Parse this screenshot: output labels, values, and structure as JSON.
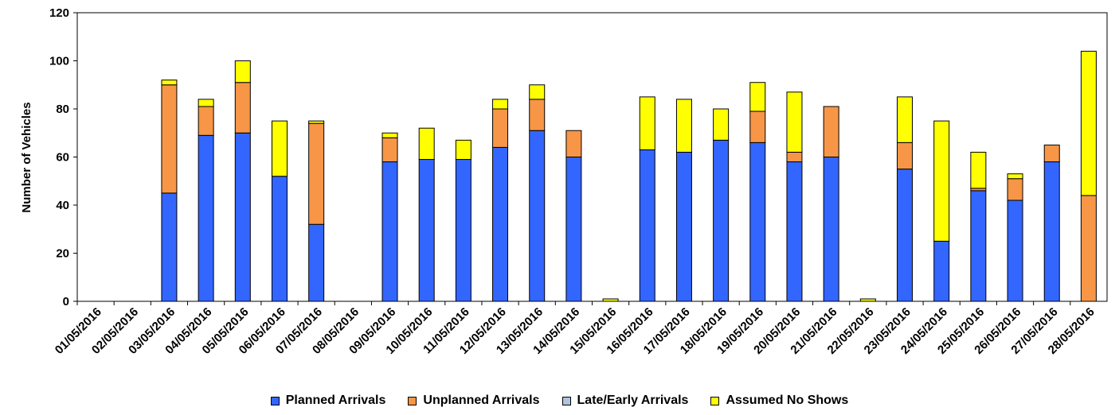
{
  "chart_data": {
    "type": "bar",
    "stacked": true,
    "title": "",
    "xlabel": "",
    "ylabel": "Number of Vehicles",
    "ylim": [
      0,
      120
    ],
    "yticks": [
      0,
      20,
      40,
      60,
      80,
      100,
      120
    ],
    "grid": false,
    "legend_position": "bottom",
    "categories": [
      "01/05/2016",
      "02/05/2016",
      "03/05/2016",
      "04/05/2016",
      "05/05/2016",
      "06/05/2016",
      "07/05/2016",
      "08/05/2016",
      "09/05/2016",
      "10/05/2016",
      "11/05/2016",
      "12/05/2016",
      "13/05/2016",
      "14/05/2016",
      "15/05/2016",
      "16/05/2016",
      "17/05/2016",
      "18/05/2016",
      "19/05/2016",
      "20/05/2016",
      "21/05/2016",
      "22/05/2016",
      "23/05/2016",
      "24/05/2016",
      "25/05/2016",
      "26/05/2016",
      "27/05/2016",
      "28/05/2016"
    ],
    "series": [
      {
        "name": "Planned Arrivals",
        "color": "#3366ff",
        "values": [
          0,
          0,
          45,
          69,
          70,
          52,
          32,
          0,
          58,
          59,
          59,
          64,
          71,
          60,
          0,
          63,
          62,
          67,
          66,
          58,
          60,
          0,
          55,
          25,
          46,
          42,
          58,
          0
        ]
      },
      {
        "name": "Unplanned Arrivals",
        "color": "#f79646",
        "values": [
          0,
          0,
          45,
          12,
          21,
          0,
          42,
          0,
          10,
          0,
          0,
          16,
          13,
          11,
          0,
          0,
          0,
          0,
          13,
          4,
          21,
          0,
          11,
          0,
          1,
          9,
          7,
          44
        ]
      },
      {
        "name": "Late/Early Arrivals",
        "color": "#b0c4de",
        "values": [
          0,
          0,
          0,
          0,
          0,
          0,
          0,
          0,
          0,
          0,
          0,
          0,
          0,
          0,
          0,
          0,
          0,
          0,
          0,
          0,
          0,
          0,
          0,
          0,
          0,
          0,
          0,
          0
        ]
      },
      {
        "name": "Assumed No Shows",
        "color": "#ffff00",
        "values": [
          0,
          0,
          2,
          3,
          9,
          23,
          1,
          0,
          2,
          13,
          8,
          4,
          6,
          0,
          1,
          22,
          22,
          13,
          12,
          25,
          0,
          1,
          19,
          50,
          15,
          2,
          0,
          60
        ]
      }
    ]
  }
}
